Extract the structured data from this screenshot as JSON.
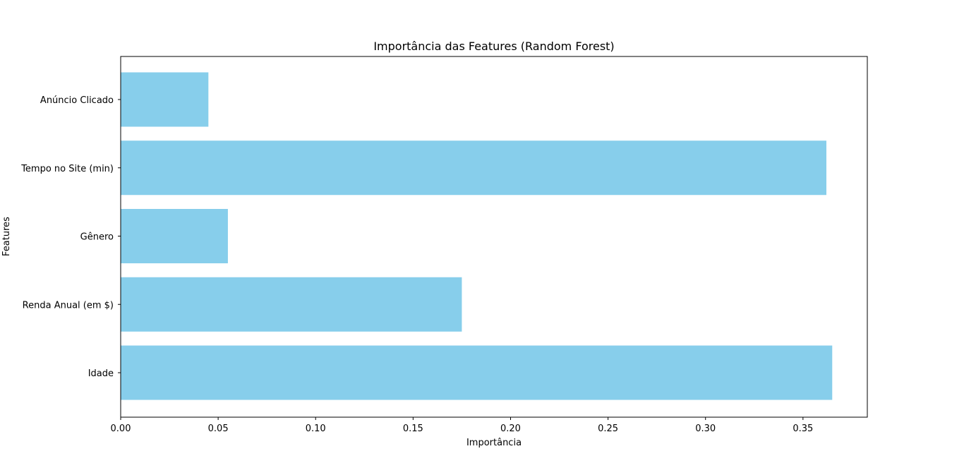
{
  "chart_data": {
    "type": "bar",
    "orientation": "horizontal",
    "title": "Importância das Features (Random Forest)",
    "xlabel": "Importância",
    "ylabel": "Features",
    "categories": [
      "Idade",
      "Renda Anual (em $)",
      "Gênero",
      "Tempo no Site (min)",
      "Anúncio Clicado"
    ],
    "values": [
      0.365,
      0.175,
      0.055,
      0.362,
      0.045
    ],
    "xlim": [
      0,
      0.383
    ],
    "xticks": [
      0.0,
      0.05,
      0.1,
      0.15,
      0.2,
      0.25,
      0.3,
      0.35
    ],
    "xtick_labels": [
      "0.00",
      "0.05",
      "0.10",
      "0.15",
      "0.20",
      "0.25",
      "0.30",
      "0.35"
    ],
    "bar_color": "#87ceeb",
    "grid": false,
    "legend": "none"
  }
}
